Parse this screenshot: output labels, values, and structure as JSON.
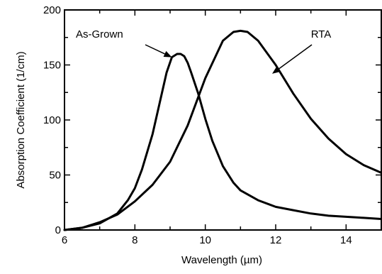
{
  "chart_data": {
    "type": "line",
    "title": "",
    "xlabel": "Wavelength (µm)",
    "ylabel": "Absorption Coefficient (1/cm)",
    "xlim": [
      6,
      15
    ],
    "ylim": [
      0,
      200
    ],
    "xticks": [
      6,
      8,
      10,
      12,
      14
    ],
    "yticks": [
      0,
      50,
      100,
      150,
      200
    ],
    "grid": false,
    "legend": "none",
    "series": [
      {
        "name": "As-Grown",
        "x": [
          6.0,
          6.5,
          7.0,
          7.5,
          7.8,
          8.0,
          8.2,
          8.5,
          8.7,
          8.9,
          9.05,
          9.2,
          9.3,
          9.4,
          9.5,
          9.6,
          9.8,
          10.0,
          10.2,
          10.5,
          10.8,
          11.0,
          11.5,
          12.0,
          12.5,
          13.0,
          13.5,
          14.0,
          14.5,
          15.0
        ],
        "y": [
          0,
          2,
          6,
          15,
          27,
          38,
          55,
          87,
          115,
          143,
          157,
          160,
          160,
          158,
          152,
          143,
          124,
          101,
          81,
          58,
          43,
          36,
          27,
          21,
          18,
          15,
          13,
          12,
          11,
          10
        ]
      },
      {
        "name": "RTA",
        "x": [
          6.0,
          6.5,
          7.0,
          7.5,
          8.0,
          8.5,
          9.0,
          9.5,
          10.0,
          10.5,
          10.8,
          11.0,
          11.2,
          11.5,
          12.0,
          12.5,
          13.0,
          13.5,
          14.0,
          14.5,
          15.0
        ],
        "y": [
          0,
          2,
          7,
          14,
          26,
          41,
          62,
          95,
          138,
          172,
          180,
          181,
          180,
          172,
          150,
          124,
          101,
          83,
          69,
          59,
          52
        ]
      }
    ],
    "annotations": [
      {
        "text": "As-Grown",
        "target_x": 9.05,
        "target_y": 157
      },
      {
        "text": "RTA",
        "target_x": 11.9,
        "target_y": 142
      }
    ]
  }
}
